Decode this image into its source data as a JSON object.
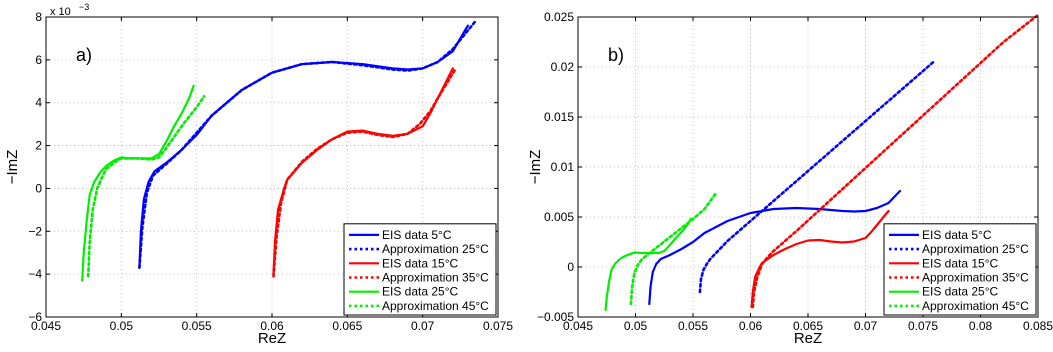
{
  "chart_data": [
    {
      "type": "line",
      "panel_label": "a)",
      "xlabel": "ReZ",
      "ylabel": "−ImZ",
      "y_exponent_label": "x 10",
      "y_exponent_power": "−3",
      "xlim": [
        0.045,
        0.075
      ],
      "ylim": [
        -6,
        8
      ],
      "xticks": [
        0.045,
        0.05,
        0.055,
        0.06,
        0.065,
        0.07,
        0.075
      ],
      "xtick_labels": [
        "0.045",
        "0.05",
        "0.055",
        "0.06",
        "0.065",
        "0.07",
        "0.075"
      ],
      "yticks": [
        -6,
        -4,
        -2,
        0,
        2,
        4,
        6,
        8
      ],
      "ytick_labels": [
        "−6",
        "−4",
        "−2",
        "0",
        "2",
        "4",
        "6",
        "8"
      ],
      "grid": true,
      "legend_position": "bottom-right",
      "series": [
        {
          "name": "EIS data 5°C",
          "color": "#0000ff",
          "style": "solid",
          "x": [
            0.0512,
            0.0513,
            0.0515,
            0.0518,
            0.0522,
            0.053,
            0.054,
            0.055,
            0.056,
            0.058,
            0.06,
            0.062,
            0.064,
            0.066,
            0.068,
            0.069,
            0.07,
            0.071,
            0.072,
            0.0725,
            0.073
          ],
          "y": [
            -3.7,
            -2.0,
            -0.5,
            0.3,
            0.8,
            1.2,
            1.8,
            2.5,
            3.4,
            4.6,
            5.4,
            5.8,
            5.9,
            5.8,
            5.6,
            5.55,
            5.6,
            5.9,
            6.4,
            7.0,
            7.6
          ]
        },
        {
          "name": "Approximation 25°C",
          "color": "#0000ff",
          "style": "dotted",
          "x": [
            0.0512,
            0.0514,
            0.0517,
            0.0521,
            0.053,
            0.054,
            0.055,
            0.056,
            0.058,
            0.06,
            0.062,
            0.064,
            0.066,
            0.068,
            0.069,
            0.07,
            0.071,
            0.072,
            0.0728,
            0.0735
          ],
          "y": [
            -3.7,
            -1.8,
            -0.2,
            0.6,
            1.15,
            1.8,
            2.6,
            3.4,
            4.6,
            5.4,
            5.8,
            5.9,
            5.75,
            5.55,
            5.5,
            5.6,
            5.9,
            6.5,
            7.2,
            7.8
          ]
        },
        {
          "name": "EIS data 15°C",
          "color": "#ff0000",
          "style": "solid",
          "x": [
            0.0601,
            0.0602,
            0.0604,
            0.0608,
            0.061,
            0.062,
            0.063,
            0.064,
            0.065,
            0.066,
            0.067,
            0.068,
            0.069,
            0.07,
            0.0705,
            0.071,
            0.0715,
            0.072
          ],
          "y": [
            -4.0,
            -2.5,
            -1.0,
            0.0,
            0.4,
            1.2,
            1.8,
            2.3,
            2.65,
            2.7,
            2.55,
            2.45,
            2.55,
            2.9,
            3.5,
            4.2,
            4.9,
            5.6
          ]
        },
        {
          "name": "Approximation 35°C",
          "color": "#ff0000",
          "style": "dotted",
          "x": [
            0.0601,
            0.0603,
            0.0606,
            0.061,
            0.062,
            0.063,
            0.064,
            0.065,
            0.066,
            0.067,
            0.068,
            0.069,
            0.0698,
            0.0705,
            0.071,
            0.0716,
            0.0722
          ],
          "y": [
            -4.1,
            -2.3,
            -0.7,
            0.4,
            1.25,
            1.85,
            2.3,
            2.6,
            2.65,
            2.5,
            2.4,
            2.55,
            3.0,
            3.6,
            4.2,
            4.9,
            5.6
          ]
        },
        {
          "name": "EIS data 25°C",
          "color": "#00ee00",
          "style": "solid",
          "x": [
            0.0474,
            0.0475,
            0.0477,
            0.0479,
            0.0482,
            0.0486,
            0.049,
            0.0495,
            0.05,
            0.0505,
            0.051,
            0.052,
            0.0525,
            0.053,
            0.0535,
            0.054,
            0.0545,
            0.0548
          ],
          "y": [
            -4.3,
            -3.0,
            -1.5,
            -0.3,
            0.3,
            0.75,
            1.05,
            1.3,
            1.45,
            1.4,
            1.4,
            1.4,
            1.6,
            2.2,
            2.9,
            3.5,
            4.2,
            4.8
          ]
        },
        {
          "name": "Approximation 45°C",
          "color": "#00ee00",
          "style": "dotted",
          "x": [
            0.0478,
            0.0479,
            0.0481,
            0.0484,
            0.0488,
            0.049,
            0.0495,
            0.05,
            0.051,
            0.052,
            0.0525,
            0.053,
            0.054,
            0.055,
            0.0555
          ],
          "y": [
            -4.1,
            -2.5,
            -1.0,
            0.0,
            0.65,
            0.9,
            1.2,
            1.4,
            1.4,
            1.35,
            1.45,
            1.9,
            2.9,
            3.8,
            4.3
          ]
        }
      ]
    },
    {
      "type": "line",
      "panel_label": "b)",
      "xlabel": "ReZ",
      "ylabel": "−ImZ",
      "xlim": [
        0.045,
        0.085
      ],
      "ylim": [
        -0.005,
        0.025
      ],
      "xticks": [
        0.045,
        0.05,
        0.055,
        0.06,
        0.065,
        0.07,
        0.075,
        0.08,
        0.085
      ],
      "xtick_labels": [
        "0.045",
        "0.05",
        "0.055",
        "0.06",
        "0.065",
        "0.07",
        "0.075",
        "0.08",
        "0.085"
      ],
      "yticks": [
        -0.005,
        0,
        0.005,
        0.01,
        0.015,
        0.02,
        0.025
      ],
      "ytick_labels": [
        "−0.005",
        "0",
        "0.005",
        "0.01",
        "0.015",
        "0.02",
        "0.025"
      ],
      "grid": true,
      "legend_position": "bottom-right",
      "series": [
        {
          "name": "EIS data 5°C",
          "color": "#0000ff",
          "style": "solid",
          "x": [
            0.0512,
            0.0513,
            0.0515,
            0.0518,
            0.0522,
            0.053,
            0.054,
            0.055,
            0.056,
            0.058,
            0.06,
            0.062,
            0.064,
            0.066,
            0.068,
            0.069,
            0.07,
            0.071,
            0.072,
            0.0725,
            0.073
          ],
          "y": [
            -0.0037,
            -0.002,
            -0.0005,
            0.0003,
            0.0008,
            0.0012,
            0.0018,
            0.0025,
            0.0034,
            0.0046,
            0.0054,
            0.0058,
            0.0059,
            0.0058,
            0.0056,
            0.00555,
            0.0056,
            0.0059,
            0.0064,
            0.007,
            0.0076
          ]
        },
        {
          "name": "Approximation 25°C",
          "color": "#0000ff",
          "style": "dotted",
          "x": [
            0.0556,
            0.0557,
            0.0559,
            0.0562,
            0.0565,
            0.057,
            0.058,
            0.06,
            0.062,
            0.064,
            0.066,
            0.068,
            0.07,
            0.072,
            0.074,
            0.076
          ],
          "y": [
            -0.0025,
            -0.0012,
            -0.0003,
            0.0003,
            0.0008,
            0.0014,
            0.0026,
            0.0046,
            0.0066,
            0.0086,
            0.0106,
            0.0126,
            0.0146,
            0.0166,
            0.0186,
            0.0206
          ]
        },
        {
          "name": "EIS data 15°C",
          "color": "#ff0000",
          "style": "solid",
          "x": [
            0.0601,
            0.0602,
            0.0604,
            0.0608,
            0.061,
            0.062,
            0.063,
            0.064,
            0.065,
            0.066,
            0.067,
            0.068,
            0.069,
            0.07,
            0.0705,
            0.071,
            0.0715,
            0.072
          ],
          "y": [
            -0.004,
            -0.0025,
            -0.001,
            0.0,
            0.0004,
            0.0012,
            0.0018,
            0.0023,
            0.00265,
            0.0027,
            0.00255,
            0.00245,
            0.00255,
            0.0029,
            0.0035,
            0.0042,
            0.0049,
            0.0056
          ]
        },
        {
          "name": "Approximation 35°C",
          "color": "#ff0000",
          "style": "dotted",
          "x": [
            0.0602,
            0.0603,
            0.0606,
            0.061,
            0.0615,
            0.062,
            0.064,
            0.066,
            0.068,
            0.07,
            0.072,
            0.074,
            0.076,
            0.078,
            0.08,
            0.082,
            0.085
          ],
          "y": [
            -0.004,
            -0.0025,
            -0.001,
            0.0003,
            0.001,
            0.0016,
            0.0036,
            0.0057,
            0.0078,
            0.0099,
            0.012,
            0.0141,
            0.0162,
            0.0183,
            0.0204,
            0.0225,
            0.0252
          ]
        },
        {
          "name": "EIS data 25°C",
          "color": "#00ee00",
          "style": "solid",
          "x": [
            0.0474,
            0.0475,
            0.0477,
            0.0479,
            0.0482,
            0.0486,
            0.049,
            0.0495,
            0.05,
            0.0505,
            0.051,
            0.052,
            0.0525,
            0.053,
            0.0535,
            0.054,
            0.0545,
            0.0548
          ],
          "y": [
            -0.0043,
            -0.003,
            -0.0015,
            -0.0003,
            0.0003,
            0.00075,
            0.00105,
            0.0013,
            0.00145,
            0.0014,
            0.0014,
            0.0014,
            0.0016,
            0.0022,
            0.0029,
            0.0035,
            0.0042,
            0.0048
          ]
        },
        {
          "name": "Approximation 45°C",
          "color": "#00ee00",
          "style": "dotted",
          "x": [
            0.0496,
            0.0497,
            0.0499,
            0.0502,
            0.0505,
            0.051,
            0.052,
            0.053,
            0.054,
            0.055,
            0.056,
            0.057
          ],
          "y": [
            -0.0037,
            -0.002,
            -0.0006,
            0.0002,
            0.0007,
            0.0012,
            0.0021,
            0.003,
            0.0039,
            0.0048,
            0.0058,
            0.0074
          ]
        }
      ]
    }
  ]
}
